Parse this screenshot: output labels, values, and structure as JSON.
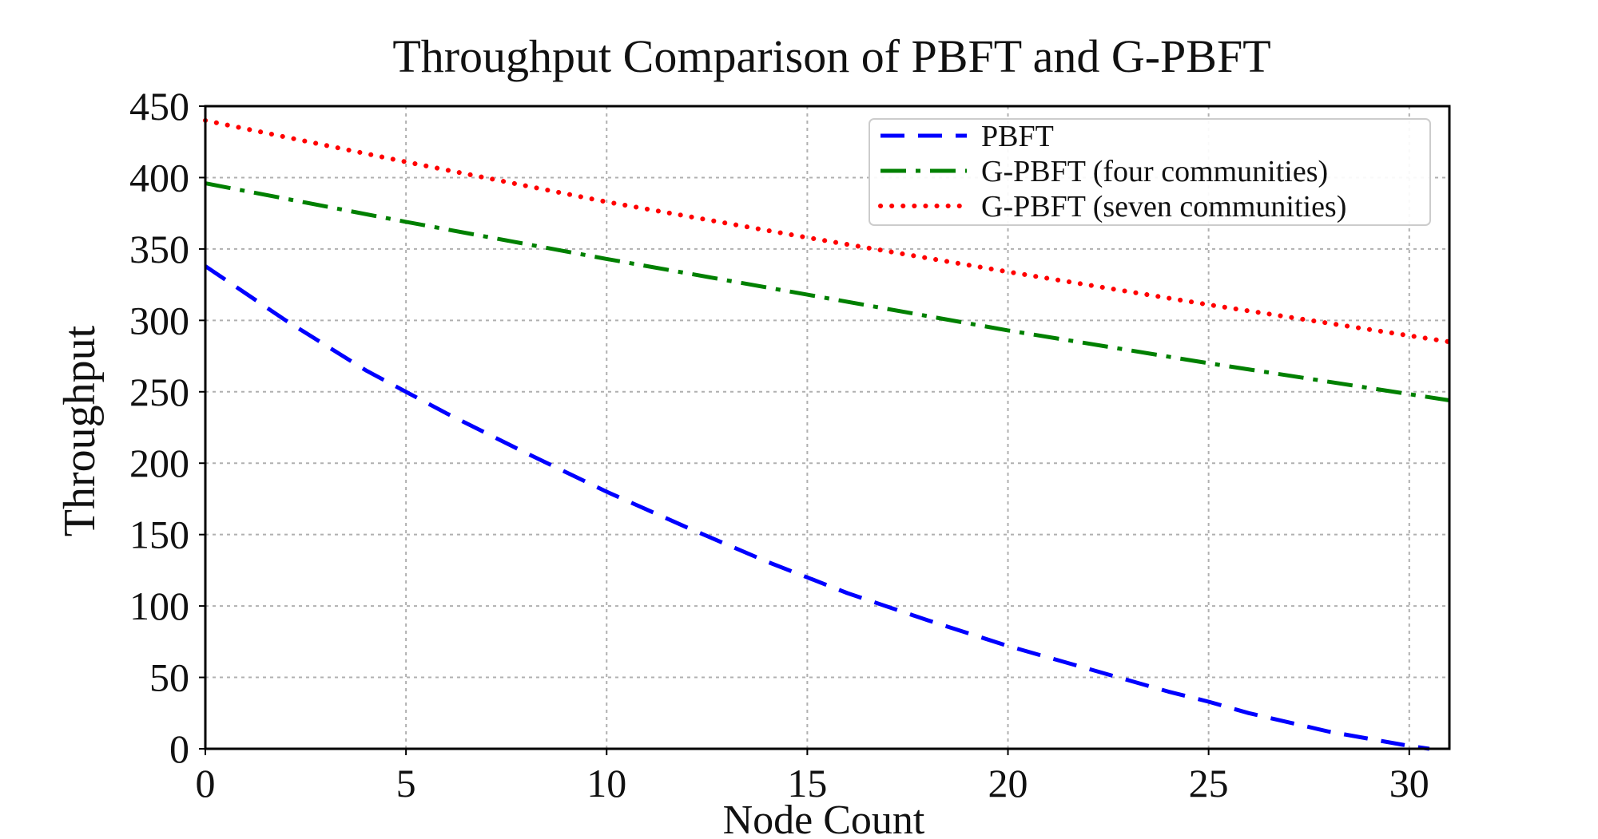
{
  "chart_data": {
    "type": "line",
    "title": "Throughput Comparison of PBFT and G-PBFT",
    "xlabel": "Node Count",
    "ylabel": "Throughput",
    "xlim": [
      0,
      31
    ],
    "ylim": [
      0,
      450
    ],
    "xticks": [
      0,
      5,
      10,
      15,
      20,
      25,
      30
    ],
    "yticks": [
      0,
      50,
      100,
      150,
      200,
      250,
      300,
      350,
      400,
      450
    ],
    "grid": true,
    "legend_position": "top-right",
    "series": [
      {
        "name": "PBFT",
        "color": "#0000ff",
        "style": "dashed",
        "x": [
          0,
          2,
          4,
          5,
          6,
          8,
          10,
          12,
          14,
          15,
          16,
          18,
          20,
          22,
          24,
          25,
          26,
          28,
          30,
          30.5
        ],
        "y": [
          338,
          300,
          265,
          250,
          235,
          207,
          180,
          155,
          131,
          120,
          109,
          90,
          72,
          56,
          40,
          33,
          25,
          12,
          2,
          0
        ]
      },
      {
        "name": "G-PBFT (four communities)",
        "color": "#008000",
        "style": "dashdot",
        "x": [
          0,
          5,
          10,
          15,
          20,
          25,
          31
        ],
        "y": [
          396,
          369,
          343,
          318,
          293,
          270,
          244
        ]
      },
      {
        "name": "G-PBFT (seven communities)",
        "color": "#ff0000",
        "style": "dotted",
        "x": [
          0,
          5,
          10,
          15,
          20,
          25,
          31
        ],
        "y": [
          440,
          411,
          383,
          358,
          334,
          311,
          285
        ]
      }
    ]
  }
}
